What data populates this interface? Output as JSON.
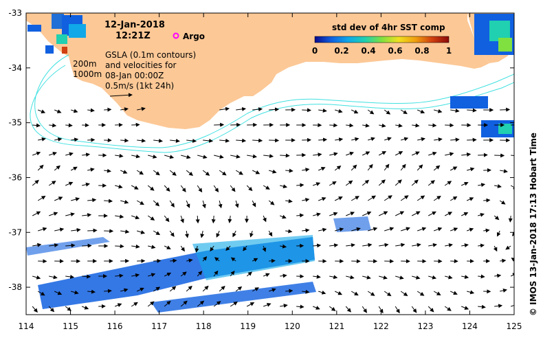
{
  "title": {
    "date": "12-Jan-2018",
    "time": "12:21Z"
  },
  "legend": {
    "argo_label": "Argo",
    "argo_color": "#ff00ff",
    "colorbar_title": "std dev of 4hr SST comp",
    "colorbar_ticks": [
      "0",
      "0.2",
      "0.4",
      "0.6",
      "0.8",
      "1"
    ],
    "colormap": [
      "#0a0a8c",
      "#1060e0",
      "#10a8e8",
      "#20d0b0",
      "#80e040",
      "#f0e020",
      "#f0a010",
      "#d04010",
      "#8a0a0a"
    ]
  },
  "annotations": {
    "contour_200": "200m",
    "contour_1000": "1000m",
    "gsla_lines": [
      "GSLA (0.1m contours)",
      "and velocities for",
      "08-Jan 00:00Z",
      "0.5m/s (1kt 24h)"
    ]
  },
  "axes": {
    "x_ticks": [
      "114",
      "115",
      "116",
      "117",
      "118",
      "119",
      "120",
      "121",
      "122",
      "123",
      "124",
      "125"
    ],
    "y_ticks": [
      "-33",
      "-34",
      "-35",
      "-36",
      "-37",
      "-38"
    ],
    "lon_range": [
      114,
      125
    ],
    "lat_range": [
      -38.5,
      -33
    ]
  },
  "credit": "© IMOS 13-Jan-2018 17:13 Hobart Time",
  "colors": {
    "land": "#fcc896",
    "ocean": "#ffffff",
    "bathymetry": "#40e0e0",
    "vectors": "#000000"
  }
}
